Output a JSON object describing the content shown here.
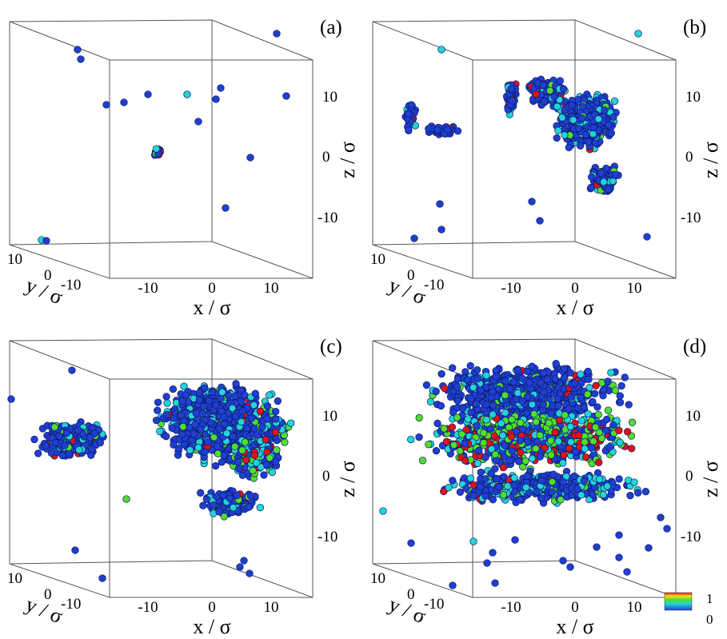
{
  "colors": {
    "particle_low": "#1f3fd0",
    "particle_mid": "#22d4d8",
    "particle_green": "#4fe02a",
    "particle_high": "#e0121a",
    "box_edge": "#555555"
  },
  "colorbar": {
    "max_label": "1",
    "min_label": "0"
  },
  "panels": [
    {
      "label": "(a)",
      "x_axis": {
        "label": "x / σ",
        "ticks": [
          "-10",
          "0",
          "10"
        ]
      },
      "y_axis": {
        "label": "y / σ",
        "ticks": [
          "10",
          "0",
          "-10"
        ]
      },
      "z_axis": {
        "label": "z / σ",
        "ticks": [
          "10",
          "0",
          "-10"
        ]
      }
    },
    {
      "label": "(b)",
      "x_axis": {
        "label": "x / σ",
        "ticks": [
          "-10",
          "0",
          "10"
        ]
      },
      "y_axis": {
        "label": "y / σ",
        "ticks": [
          "10",
          "0",
          "-10"
        ]
      },
      "z_axis": {
        "label": "z / σ",
        "ticks": [
          "10",
          "0",
          "-10"
        ]
      }
    },
    {
      "label": "(c)",
      "x_axis": {
        "label": "x / σ",
        "ticks": [
          "-10",
          "0",
          "10"
        ]
      },
      "y_axis": {
        "label": "y / σ",
        "ticks": [
          "10",
          "0",
          "-10"
        ]
      },
      "z_axis": {
        "label": "z / σ",
        "ticks": [
          "10",
          "0",
          "-10"
        ]
      }
    },
    {
      "label": "(d)",
      "x_axis": {
        "label": "x / σ",
        "ticks": [
          "-10",
          "0",
          "10"
        ]
      },
      "y_axis": {
        "label": "y / σ",
        "ticks": [
          "10",
          "0",
          "-10"
        ]
      },
      "z_axis": {
        "label": "z / σ",
        "ticks": [
          "10",
          "0",
          "-10"
        ]
      }
    }
  ]
}
